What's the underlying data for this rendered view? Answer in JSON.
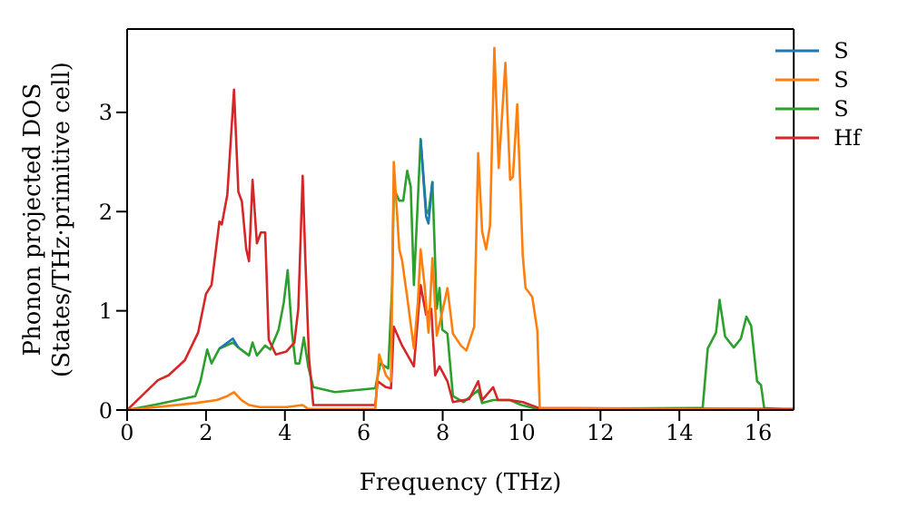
{
  "chart_data": {
    "type": "line",
    "xlabel": "Frequency (THz)",
    "ylabel": "Phonon projected DOS\n(States/THz·primitive cell)",
    "xlim": [
      0,
      16.9
    ],
    "ylim": [
      0,
      3.84
    ],
    "xticks": [
      0,
      2,
      4,
      6,
      8,
      10,
      12,
      14,
      16
    ],
    "yticks": [
      0,
      1,
      2,
      3
    ],
    "legend": "top right",
    "marker": "none",
    "line_style": "solid",
    "series": [
      {
        "name": "S",
        "color": "#1f77b4",
        "x": [
          2.34,
          2.68,
          2.82
        ],
        "values": [
          0.62,
          0.72,
          0.63
        ]
      },
      {
        "name": "S",
        "color": "#ff7f0e",
        "x": [
          0,
          1.73,
          2.27,
          2.54,
          2.71,
          2.9,
          3.09,
          3.36,
          4.04,
          4.45,
          4.59,
          6.29,
          6.39,
          6.56,
          6.69,
          6.76,
          6.9,
          6.97,
          7.1,
          7.27,
          7.37,
          7.44,
          7.54,
          7.64,
          7.74,
          7.85,
          7.99,
          8.12,
          8.26,
          8.46,
          8.6,
          8.8,
          8.9,
          9.0,
          9.1,
          9.2,
          9.31,
          9.42,
          9.59,
          9.71,
          9.78,
          9.89,
          10.03,
          10.1,
          10.27,
          10.4,
          10.46,
          16.9
        ],
        "values": [
          0,
          0.07,
          0.1,
          0.14,
          0.18,
          0.1,
          0.05,
          0.03,
          0.03,
          0.05,
          0.01,
          0.01,
          0.56,
          0.35,
          0.29,
          2.5,
          1.62,
          1.51,
          1.14,
          0.62,
          1.08,
          1.62,
          1.26,
          0.78,
          1.53,
          0.75,
          0.99,
          1.23,
          0.77,
          0.65,
          0.6,
          0.84,
          2.59,
          1.8,
          1.62,
          1.86,
          3.65,
          2.44,
          3.5,
          2.32,
          2.35,
          3.08,
          1.56,
          1.23,
          1.14,
          0.8,
          0.02,
          0
        ]
      },
      {
        "name": "S",
        "color": "#2ca02c",
        "x": [
          0,
          0.78,
          1.73,
          1.86,
          2.03,
          2.14,
          2.34,
          2.68,
          2.82,
          3.09,
          3.18,
          3.29,
          3.5,
          3.63,
          3.84,
          3.97,
          4.07,
          4.18,
          4.27,
          4.37,
          4.48,
          4.59,
          4.72,
          5.27,
          6.29,
          6.42,
          6.62,
          6.72,
          6.76,
          6.9,
          7.0,
          7.1,
          7.19,
          7.27,
          7.37,
          7.44,
          7.58,
          7.64,
          7.74,
          7.85,
          7.92,
          7.99,
          8.12,
          8.26,
          8.53,
          8.9,
          9.0,
          9.28,
          9.7,
          10.0,
          10.4,
          14.59,
          14.72,
          14.93,
          15.02,
          15.16,
          15.38,
          15.56,
          15.7,
          15.82,
          15.97,
          16.07,
          16.15,
          16.9
        ],
        "values": [
          0,
          0.06,
          0.14,
          0.29,
          0.61,
          0.47,
          0.62,
          0.68,
          0.63,
          0.55,
          0.68,
          0.55,
          0.65,
          0.61,
          0.81,
          1.08,
          1.41,
          0.78,
          0.47,
          0.47,
          0.73,
          0.44,
          0.23,
          0.18,
          0.22,
          0.47,
          0.42,
          1.26,
          2.23,
          2.11,
          2.11,
          2.41,
          2.25,
          1.26,
          2.11,
          2.73,
          2.02,
          1.98,
          2.3,
          1.02,
          1.23,
          0.81,
          0.77,
          0.14,
          0.08,
          0.2,
          0.07,
          0.1,
          0.1,
          0.05,
          0.01,
          0.02,
          0.62,
          0.78,
          1.11,
          0.74,
          0.63,
          0.72,
          0.94,
          0.85,
          0.29,
          0.25,
          0.02,
          0
        ]
      },
      {
        "name": "Hf",
        "color": "#d62728",
        "x": [
          0,
          0.78,
          1.05,
          1.46,
          1.8,
          2.0,
          2.14,
          2.34,
          2.4,
          2.54,
          2.71,
          2.82,
          2.91,
          3.02,
          3.09,
          3.18,
          3.29,
          3.39,
          3.5,
          3.59,
          3.77,
          4.04,
          4.24,
          4.34,
          4.45,
          4.52,
          4.61,
          4.72,
          6.29,
          6.35,
          6.56,
          6.69,
          6.76,
          6.97,
          7.27,
          7.44,
          7.58,
          7.71,
          7.81,
          7.92,
          8.12,
          8.26,
          8.67,
          8.9,
          9.0,
          9.28,
          9.4,
          9.7,
          10.03,
          10.43,
          16.9
        ],
        "values": [
          0,
          0.3,
          0.35,
          0.5,
          0.78,
          1.17,
          1.26,
          1.9,
          1.87,
          2.17,
          3.23,
          2.2,
          2.1,
          1.62,
          1.5,
          2.32,
          1.68,
          1.79,
          1.79,
          0.71,
          0.56,
          0.59,
          0.68,
          1.02,
          2.36,
          1.5,
          0.53,
          0.05,
          0.05,
          0.29,
          0.23,
          0.22,
          0.84,
          0.65,
          0.44,
          1.26,
          0.96,
          1.02,
          0.35,
          0.44,
          0.29,
          0.08,
          0.11,
          0.29,
          0.1,
          0.23,
          0.1,
          0.1,
          0.08,
          0.02,
          0.01
        ]
      },
      {
        "color": "#1f77b4",
        "x": [
          7.44,
          7.58,
          7.64,
          7.74
        ],
        "values": [
          2.73,
          1.95,
          1.88,
          2.3
        ]
      }
    ]
  }
}
